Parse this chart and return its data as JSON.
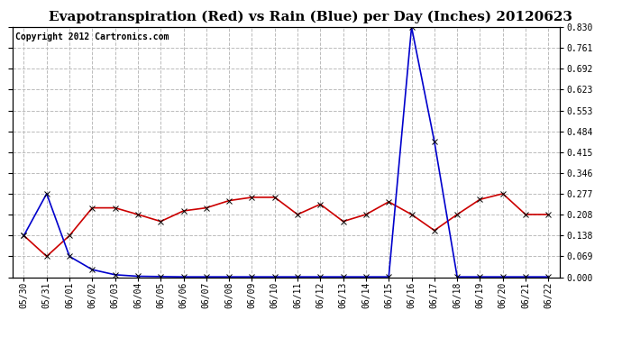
{
  "title": "Evapotranspiration (Red) vs Rain (Blue) per Day (Inches) 20120623",
  "copyright_text": "Copyright 2012 Cartronics.com",
  "x_labels": [
    "05/30",
    "05/31",
    "06/01",
    "06/02",
    "06/03",
    "06/04",
    "06/05",
    "06/06",
    "06/07",
    "06/08",
    "06/09",
    "06/10",
    "06/11",
    "06/12",
    "06/13",
    "06/14",
    "06/15",
    "06/16",
    "06/17",
    "06/18",
    "06/19",
    "06/20",
    "06/21",
    "06/22"
  ],
  "red_data": [
    0.138,
    0.069,
    0.138,
    0.23,
    0.23,
    0.208,
    0.185,
    0.22,
    0.23,
    0.254,
    0.265,
    0.265,
    0.208,
    0.242,
    0.185,
    0.208,
    0.25,
    0.208,
    0.155,
    0.208,
    0.258,
    0.277,
    0.208,
    0.208
  ],
  "blue_data": [
    0.138,
    0.277,
    0.069,
    0.025,
    0.008,
    0.003,
    0.002,
    0.001,
    0.001,
    0.001,
    0.001,
    0.001,
    0.001,
    0.001,
    0.001,
    0.001,
    0.001,
    0.83,
    0.45,
    0.001,
    0.001,
    0.001,
    0.001,
    0.001
  ],
  "red_color": "#cc0000",
  "blue_color": "#0000cc",
  "bg_color": "#ffffff",
  "grid_color": "#bbbbbb",
  "y_ticks": [
    0.0,
    0.069,
    0.138,
    0.208,
    0.277,
    0.346,
    0.415,
    0.484,
    0.553,
    0.623,
    0.692,
    0.761,
    0.83
  ],
  "ylim_min": 0.0,
  "ylim_max": 0.83,
  "title_fontsize": 11,
  "copyright_fontsize": 7,
  "tick_fontsize": 7,
  "marker": "x",
  "marker_size": 4,
  "line_width": 1.2
}
